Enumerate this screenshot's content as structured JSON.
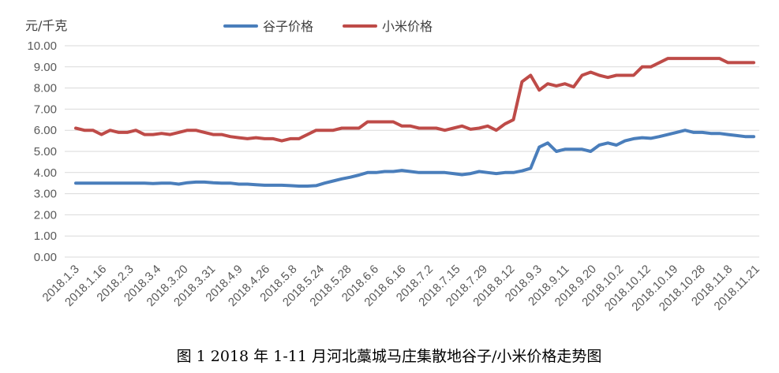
{
  "chart_data": {
    "type": "line",
    "title": "",
    "caption": "图 1    2018 年 1-11 月河北藁城马庄集散地谷子/小米价格走势图",
    "ylabel": "元/千克",
    "xlabel": "",
    "ylim": [
      0,
      10
    ],
    "y_ticks": [
      "0.00",
      "1.00",
      "2.00",
      "3.00",
      "4.00",
      "5.00",
      "6.00",
      "7.00",
      "8.00",
      "9.00",
      "10.00"
    ],
    "grid": true,
    "legend_position": "top-center",
    "x_tick_labels": [
      "2018.1.3",
      "2018.1.16",
      "2018.2.3",
      "2018.3.4",
      "2018.3.20",
      "2018.3.31",
      "2018.4.9",
      "2018.4.26",
      "2018.5.8",
      "2018.5.24",
      "2018.5.28",
      "2018.6.6",
      "2018.6.16",
      "2018.7.2",
      "2018.7.15",
      "2018.7.29",
      "2018.8.12",
      "2018.9.3",
      "2018.9.11",
      "2018.9.20",
      "2018.10.2",
      "2018.10.12",
      "2018.10.19",
      "2018.10.28",
      "2018.11.8",
      "2018.11.21"
    ],
    "series": [
      {
        "name": "谷子价格",
        "color": "#4a7ebb",
        "values": [
          3.5,
          3.5,
          3.5,
          3.5,
          3.5,
          3.5,
          3.5,
          3.5,
          3.5,
          3.48,
          3.5,
          3.5,
          3.45,
          3.52,
          3.55,
          3.55,
          3.52,
          3.5,
          3.5,
          3.45,
          3.45,
          3.42,
          3.4,
          3.4,
          3.4,
          3.38,
          3.36,
          3.36,
          3.38,
          3.5,
          3.6,
          3.7,
          3.78,
          3.88,
          4.0,
          4.0,
          4.05,
          4.05,
          4.1,
          4.05,
          4.0,
          4.0,
          4.0,
          4.0,
          3.95,
          3.9,
          3.95,
          4.05,
          4.0,
          3.95,
          4.0,
          4.0,
          4.08,
          4.2,
          5.2,
          5.4,
          5.0,
          5.1,
          5.1,
          5.1,
          5.0,
          5.3,
          5.4,
          5.3,
          5.5,
          5.6,
          5.65,
          5.62,
          5.7,
          5.8,
          5.9,
          6.0,
          5.9,
          5.9,
          5.85,
          5.85,
          5.8,
          5.75,
          5.7,
          5.7
        ]
      },
      {
        "name": "小米价格",
        "color": "#be4b48",
        "values": [
          6.1,
          6.0,
          6.0,
          5.8,
          6.0,
          5.9,
          5.9,
          6.0,
          5.8,
          5.8,
          5.85,
          5.8,
          5.9,
          6.0,
          6.0,
          5.9,
          5.8,
          5.8,
          5.7,
          5.65,
          5.6,
          5.65,
          5.6,
          5.6,
          5.5,
          5.6,
          5.6,
          5.8,
          6.0,
          6.0,
          6.0,
          6.1,
          6.1,
          6.1,
          6.4,
          6.4,
          6.4,
          6.4,
          6.2,
          6.2,
          6.1,
          6.1,
          6.1,
          6.0,
          6.1,
          6.2,
          6.05,
          6.1,
          6.2,
          6.0,
          6.3,
          6.5,
          8.3,
          8.6,
          7.9,
          8.2,
          8.1,
          8.2,
          8.05,
          8.6,
          8.75,
          8.6,
          8.5,
          8.6,
          8.6,
          8.6,
          9.0,
          9.0,
          9.2,
          9.4,
          9.4,
          9.4,
          9.4,
          9.4,
          9.4,
          9.4,
          9.2,
          9.2,
          9.2,
          9.2
        ]
      }
    ]
  }
}
